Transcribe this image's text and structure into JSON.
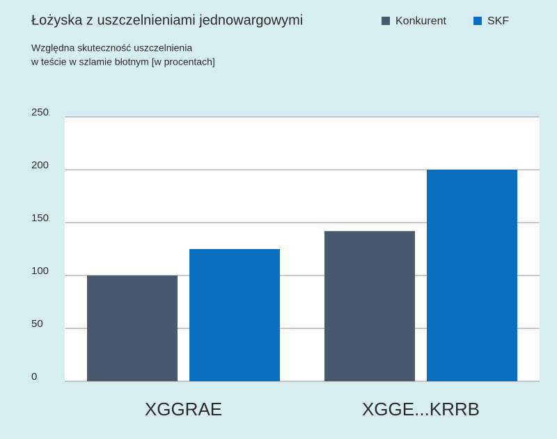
{
  "chart_data": {
    "type": "bar",
    "title": "Łożyska z uszczelnieniami jednowargowymi",
    "subtitle": [
      "Względna skuteczność uszczelnienia",
      "w teście w szlamie błotnym [w procentach]"
    ],
    "categories": [
      "XGGRAE",
      "XGGE...KRRB"
    ],
    "series": [
      {
        "name": "Konkurent",
        "color": "#4a5a6e",
        "values": [
          100,
          142
        ]
      },
      {
        "name": "SKF",
        "color": "#0b6fc0",
        "values": [
          125,
          200
        ]
      }
    ],
    "ylim": [
      0,
      250
    ],
    "yticks": [
      0,
      50,
      100,
      150,
      200,
      250
    ],
    "grid": true
  }
}
